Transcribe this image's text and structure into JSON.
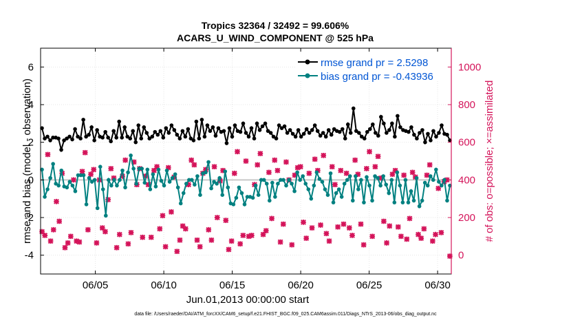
{
  "chart_data": {
    "type": "line",
    "title_line1": "Tropics 32364 / 32492 = 99.606%",
    "title_line2": "ACARS_U_WIND_COMPONENT @ 525 hPa",
    "xlabel": "Jun.01,2013 00:00:00 start",
    "ylabel_left": "rmse and bias (model - observation)",
    "ylabel_right": "# of obs: o=possible; ×=assimilated",
    "footer": "data file: /Users/raeder/DAI/ATM_forcXX/CAM6_setup/f.e21.FHIST_BGC.f09_025.CAM6assim.011/Diags_NTrS_2013-06/obs_diag_output.nc",
    "xlim": [
      1,
      31
    ],
    "ylim_left": [
      -5,
      7
    ],
    "ylim_right": [
      -100,
      1100
    ],
    "x_ticks": [
      5,
      10,
      15,
      20,
      25,
      30
    ],
    "x_tick_labels": [
      "06/05",
      "06/10",
      "06/15",
      "06/20",
      "06/25",
      "06/30"
    ],
    "y_ticks_left": [
      -4,
      -2,
      0,
      2,
      4,
      6
    ],
    "y_tick_labels_left": [
      "-4",
      "-2",
      "0",
      "2",
      "4",
      "6"
    ],
    "y_ticks_right": [
      0,
      200,
      400,
      600,
      800,
      1000
    ],
    "y_tick_labels_right": [
      "0",
      "200",
      "400",
      "600",
      "800",
      "1000"
    ],
    "colors": {
      "rmse": "#000000",
      "bias": "#008080",
      "obs": "#d4145a",
      "legend_text": "#0055d4",
      "right_axis": "#d4145a",
      "zero_line": "#c8c8c8"
    },
    "series": [
      {
        "name": "rmse grand pr = 2.5298",
        "values": [
          2.75,
          2.2,
          2.3,
          2.1,
          2.25,
          2.25,
          2.2,
          1.6,
          2.1,
          2.2,
          2.3,
          2.15,
          2.7,
          2.3,
          2.2,
          3.2,
          2.3,
          2.4,
          2.8,
          2.1,
          2.65,
          2.3,
          2.25,
          2.55,
          2.25,
          2.05,
          2.6,
          2.25,
          3.1,
          2.25,
          2.8,
          2.3,
          2.2,
          2.6,
          2.0,
          2.9,
          2.2,
          2.8,
          2.5,
          2.2,
          2.3,
          2.55,
          2.4,
          2.6,
          2.25,
          2.75,
          2.5,
          2.9,
          2.65,
          2.4,
          2.2,
          2.6,
          2.3,
          2.7,
          2.2,
          2.1,
          3.1,
          2.2,
          3.2,
          2.3,
          2.9,
          2.6,
          2.8,
          2.35,
          2.75,
          2.55,
          2.6,
          1.95,
          2.75,
          2.3,
          2.9,
          2.6,
          2.55,
          3.0,
          2.5,
          2.3,
          2.75,
          2.2,
          3.0,
          2.65,
          2.85,
          3.0,
          2.6,
          2.5,
          2.3,
          2.2,
          2.9,
          2.75,
          2.85,
          2.5,
          2.65,
          2.45,
          2.3,
          2.65,
          2.3,
          2.45,
          2.7,
          2.5,
          2.65,
          2.9,
          2.6,
          2.35,
          2.5,
          2.3,
          2.65,
          2.4,
          2.7,
          2.6,
          2.55,
          2.7,
          2.2,
          2.95,
          2.5,
          3.8,
          2.6,
          2.5,
          2.3,
          2.2,
          2.55,
          2.7,
          2.95,
          2.5,
          2.35,
          3.35,
          3.0,
          2.5,
          2.65,
          3.0,
          2.3,
          3.4,
          2.8,
          2.65,
          2.6,
          2.55,
          2.8,
          2.4,
          2.2,
          2.5,
          2.65,
          2.0,
          2.45,
          2.1,
          2.6,
          2.3,
          2.5,
          2.9,
          2.45,
          2.4,
          2.1
        ]
      },
      {
        "name": "bias grand pr = -0.43936",
        "values": [
          0.55,
          -0.9,
          -0.5,
          0.1,
          0.85,
          -0.2,
          -0.3,
          0.5,
          -0.35,
          -0.4,
          -0.1,
          -0.3,
          -0.6,
          0.25,
          0.25,
          0.25,
          -1.3,
          0.1,
          -0.1,
          0.0,
          -1.5,
          0.7,
          -0.5,
          -1.9,
          0.0,
          -0.3,
          0.0,
          -0.3,
          0.0,
          0.5,
          -0.4,
          0.4,
          1.3,
          0.6,
          -0.2,
          0.6,
          0.6,
          -0.15,
          0.55,
          -0.5,
          0.3,
          -0.35,
          0.55,
          -0.05,
          -0.3,
          0.5,
          -0.1,
          0.1,
          0.3,
          -0.4,
          -1.25,
          -0.7,
          -0.2,
          0.0,
          0.0,
          -0.25,
          0.2,
          -0.8,
          0.35,
          0.4,
          0.95,
          -0.45,
          -0.1,
          -0.2,
          0.1,
          -0.8,
          0.45,
          -0.4,
          -1.25,
          -1.3,
          -0.95,
          -0.4,
          -0.7,
          -1.3,
          -0.9,
          -0.9,
          -0.95,
          -0.3,
          -0.8,
          0.0,
          0.0,
          -0.2,
          -1.1,
          -0.15,
          -0.9,
          -0.2,
          0.0,
          0.0,
          -0.3,
          0.0,
          -0.2,
          -0.6,
          0.4,
          0.0,
          0.2,
          -0.2,
          -0.5,
          -1.0,
          -0.3,
          0.4,
          0.05,
          -0.1,
          -0.5,
          -0.8,
          0.35,
          -1.2,
          -0.7,
          -0.5,
          -0.9,
          -0.2,
          0.0,
          0.2,
          -1.1,
          0.2,
          -0.5,
          0.0,
          -1.2,
          0.15,
          -0.3,
          -1.1,
          0.2,
          0.1,
          -0.3,
          0.2,
          -0.25,
          -0.7,
          0.0,
          -1.2,
          0.4,
          -0.3,
          -1.2,
          0.0,
          -1.2,
          -0.6,
          -1.1,
          0.1,
          -1.4,
          -1.1,
          -0.15,
          -0.3,
          0.2,
          0.0,
          0.55,
          -0.1,
          -0.3,
          0.0,
          -1.1,
          -0.3
        ]
      }
    ],
    "obs_possible_o": [],
    "obs_assimilated_x": [
      125,
      105,
      535,
      75,
      135,
      285,
      180,
      435,
      40,
      65,
      100,
      400,
      75,
      70,
      445,
      545,
      135,
      430,
      455,
      65,
      400,
      145,
      125,
      295,
      460,
      410,
      40,
      110,
      420,
      505,
      60,
      120,
      495,
      375,
      460,
      95,
      420,
      375,
      95,
      450,
      470,
      140,
      210,
      45,
      465,
      230,
      415,
      20,
      80,
      155,
      140,
      375,
      505,
      480,
      80,
      45,
      435,
      455,
      135,
      80,
      470,
      200,
      395,
      450,
      185,
      30,
      75,
      435,
      550,
      60,
      105,
      500,
      100,
      105,
      375,
      480,
      540,
      110,
      130,
      440,
      195,
      505,
      450,
      70,
      165,
      495,
      400,
      55,
      425,
      465,
      470,
      175,
      90,
      435,
      145,
      510,
      450,
      160,
      530,
      115,
      75,
      470,
      375,
      150,
      450,
      165,
      435,
      145,
      105,
      505,
      430,
      165,
      55,
      460,
      550,
      100,
      470,
      525,
      410,
      180,
      65,
      155,
      430,
      450,
      150,
      100,
      425,
      85,
      195,
      440,
      415,
      110,
      90,
      140,
      425,
      480,
      75,
      110,
      355,
      120,
      390,
      400,
      -5
    ],
    "legend": {
      "rmse_label": "rmse grand pr = 2.5298",
      "bias_label": "bias grand pr = -0.43936"
    }
  }
}
